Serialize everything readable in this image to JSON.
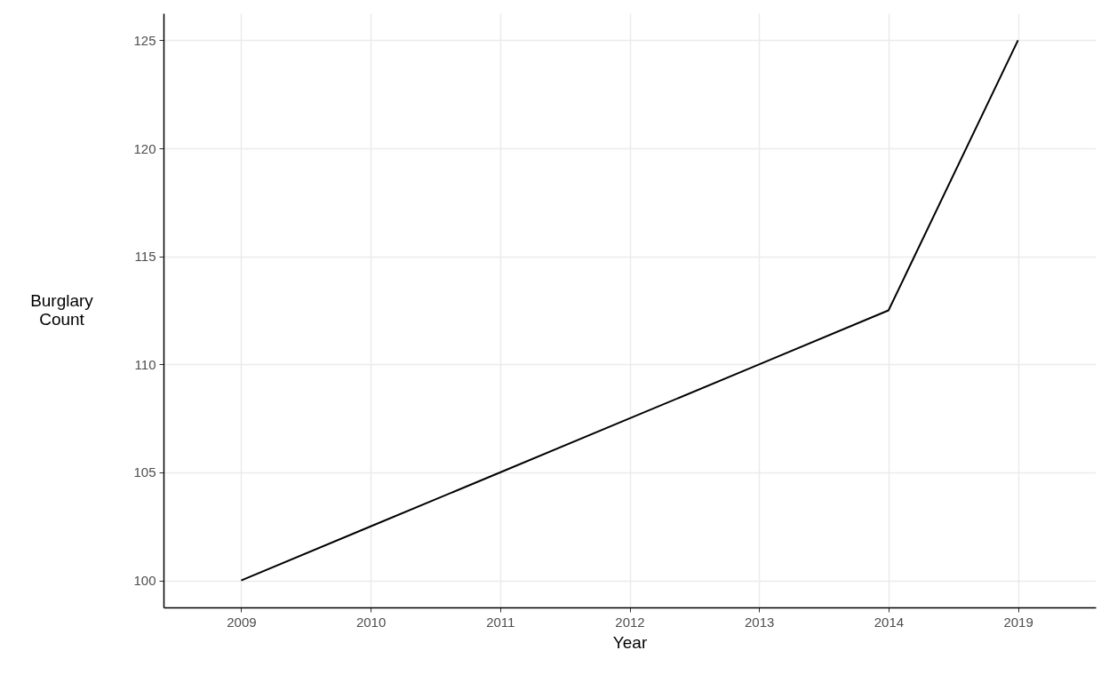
{
  "chart_data": {
    "type": "line",
    "xlabel": "Year",
    "ylabel": "Burglary Count",
    "categories": [
      "2009",
      "2010",
      "2011",
      "2012",
      "2013",
      "2014",
      "2019"
    ],
    "series": [
      {
        "color": "#000000",
        "values": [
          100,
          102.5,
          105,
          107.5,
          110,
          112.5,
          125
        ]
      }
    ],
    "ylim": [
      98.75,
      126.25
    ],
    "yticks": [
      100,
      105,
      110,
      115,
      120,
      125
    ],
    "grid": true
  }
}
